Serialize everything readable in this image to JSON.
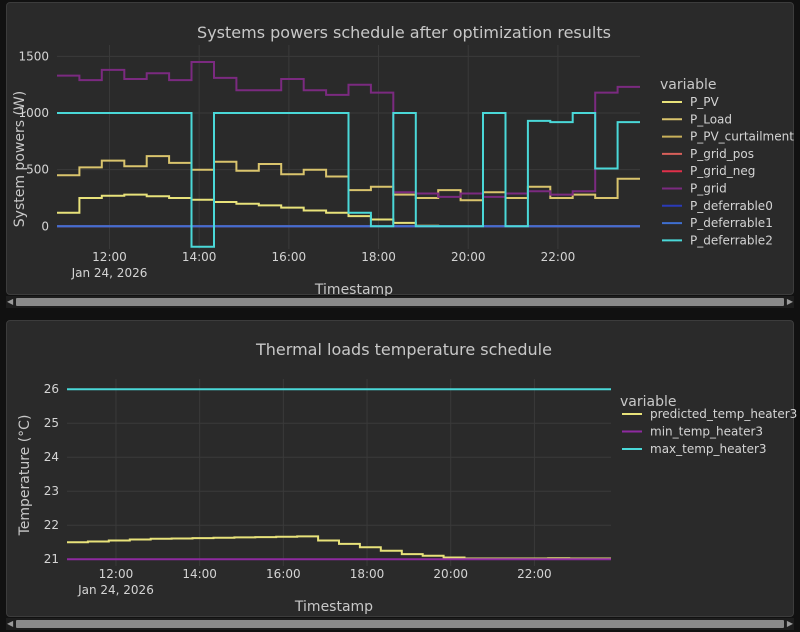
{
  "colors": {
    "P_PV": "#e8e27a",
    "P_Load": "#d9c46d",
    "P_PV_curtailment": "#c9b15a",
    "P_grid_pos": "#d8605a",
    "P_grid_neg": "#e0304a",
    "P_grid": "#7b2a80",
    "P_deferrable0": "#2a3ab8",
    "P_deferrable1": "#3f6fd0",
    "P_deferrable2": "#4ad8d8",
    "predicted_temp_heater3": "#e8e27a",
    "min_temp_heater3": "#8e2aa0",
    "max_temp_heater3": "#4ad8d8",
    "grid": "#3a3a3a",
    "text": "#d4d4d4"
  },
  "chart_data": [
    {
      "type": "line",
      "title": "Systems powers schedule after optimization results",
      "xlabel": "Timestamp",
      "ylabel": "System powers (W)",
      "x_start_hour": 10.83,
      "x_step_hours": 0.5,
      "xlim_hours": [
        10.83,
        23.83
      ],
      "ylim": [
        -200,
        1600
      ],
      "y_ticks": [
        0,
        500,
        1000,
        1500
      ],
      "x_ticks": [
        {
          "hour": 12,
          "label": "12:00",
          "sublabel": "Jan 24, 2026"
        },
        {
          "hour": 14,
          "label": "14:00"
        },
        {
          "hour": 16,
          "label": "16:00"
        },
        {
          "hour": 18,
          "label": "18:00"
        },
        {
          "hour": 20,
          "label": "20:00"
        },
        {
          "hour": 22,
          "label": "22:00"
        }
      ],
      "legend_title": "variable",
      "legend_position": "right",
      "series": [
        {
          "name": "P_PV",
          "values": [
            120,
            250,
            270,
            280,
            265,
            250,
            235,
            215,
            200,
            185,
            165,
            140,
            120,
            90,
            60,
            30,
            5,
            0,
            0,
            0,
            0,
            0,
            0,
            0,
            0,
            0
          ]
        },
        {
          "name": "P_Load",
          "values": [
            450,
            520,
            580,
            530,
            620,
            560,
            500,
            570,
            490,
            550,
            460,
            500,
            440,
            320,
            350,
            280,
            250,
            320,
            230,
            300,
            250,
            350,
            250,
            280,
            250,
            420
          ]
        },
        {
          "name": "P_PV_curtailment",
          "values": [
            0,
            0,
            0,
            0,
            0,
            0,
            0,
            0,
            0,
            0,
            0,
            0,
            0,
            0,
            0,
            0,
            0,
            0,
            0,
            0,
            0,
            0,
            0,
            0,
            0,
            0
          ]
        },
        {
          "name": "P_grid_pos",
          "values": [
            0,
            0,
            0,
            0,
            0,
            0,
            0,
            0,
            0,
            0,
            0,
            0,
            0,
            0,
            0,
            0,
            0,
            0,
            0,
            0,
            0,
            0,
            0,
            0,
            0,
            0
          ]
        },
        {
          "name": "P_grid_neg",
          "values": [
            0,
            0,
            0,
            0,
            0,
            0,
            0,
            0,
            0,
            0,
            0,
            0,
            0,
            0,
            0,
            0,
            0,
            0,
            0,
            0,
            0,
            0,
            0,
            0,
            0,
            0
          ]
        },
        {
          "name": "P_grid",
          "values": [
            1330,
            1290,
            1380,
            1300,
            1350,
            1290,
            1450,
            1310,
            1200,
            1200,
            1300,
            1200,
            1160,
            1250,
            1180,
            300,
            290,
            260,
            290,
            260,
            290,
            310,
            280,
            310,
            1180,
            1230
          ]
        },
        {
          "name": "P_deferrable0",
          "values": [
            0,
            0,
            0,
            0,
            0,
            0,
            0,
            0,
            0,
            0,
            0,
            0,
            0,
            0,
            0,
            0,
            0,
            0,
            0,
            0,
            0,
            0,
            0,
            0,
            0,
            0
          ]
        },
        {
          "name": "P_deferrable1",
          "values": [
            0,
            0,
            0,
            0,
            0,
            0,
            0,
            0,
            0,
            0,
            0,
            0,
            0,
            0,
            0,
            0,
            0,
            0,
            0,
            0,
            0,
            0,
            0,
            0,
            0,
            0
          ]
        },
        {
          "name": "P_deferrable2",
          "values": [
            1000,
            1000,
            1000,
            1000,
            1000,
            1000,
            -180,
            1000,
            1000,
            1000,
            1000,
            1000,
            1000,
            120,
            0,
            1000,
            0,
            0,
            0,
            1000,
            0,
            930,
            920,
            1000,
            510,
            920
          ]
        }
      ]
    },
    {
      "type": "line",
      "title": "Thermal loads temperature schedule",
      "xlabel": "Timestamp",
      "ylabel": "Temperature (°C)",
      "x_start_hour": 10.83,
      "x_step_hours": 0.5,
      "xlim_hours": [
        10.83,
        23.83
      ],
      "ylim": [
        20.8,
        26.3
      ],
      "y_ticks": [
        21,
        22,
        23,
        24,
        25,
        26
      ],
      "x_ticks": [
        {
          "hour": 12,
          "label": "12:00",
          "sublabel": "Jan 24, 2026"
        },
        {
          "hour": 14,
          "label": "14:00"
        },
        {
          "hour": 16,
          "label": "16:00"
        },
        {
          "hour": 18,
          "label": "18:00"
        },
        {
          "hour": 20,
          "label": "20:00"
        },
        {
          "hour": 22,
          "label": "22:00"
        }
      ],
      "legend_title": "variable",
      "legend_position": "right",
      "series": [
        {
          "name": "predicted_temp_heater3",
          "values": [
            21.5,
            21.52,
            21.55,
            21.58,
            21.6,
            21.61,
            21.62,
            21.63,
            21.64,
            21.65,
            21.66,
            21.67,
            21.55,
            21.45,
            21.35,
            21.25,
            21.15,
            21.1,
            21.05,
            21.02,
            21.02,
            21.02,
            21.02,
            21.03,
            21.02,
            21.02
          ]
        },
        {
          "name": "min_temp_heater3",
          "values": [
            21,
            21,
            21,
            21,
            21,
            21,
            21,
            21,
            21,
            21,
            21,
            21,
            21,
            21,
            21,
            21,
            21,
            21,
            21,
            21,
            21,
            21,
            21,
            21,
            21,
            21
          ]
        },
        {
          "name": "max_temp_heater3",
          "values": [
            26,
            26,
            26,
            26,
            26,
            26,
            26,
            26,
            26,
            26,
            26,
            26,
            26,
            26,
            26,
            26,
            26,
            26,
            26,
            26,
            26,
            26,
            26,
            26,
            26,
            26
          ]
        }
      ]
    }
  ]
}
